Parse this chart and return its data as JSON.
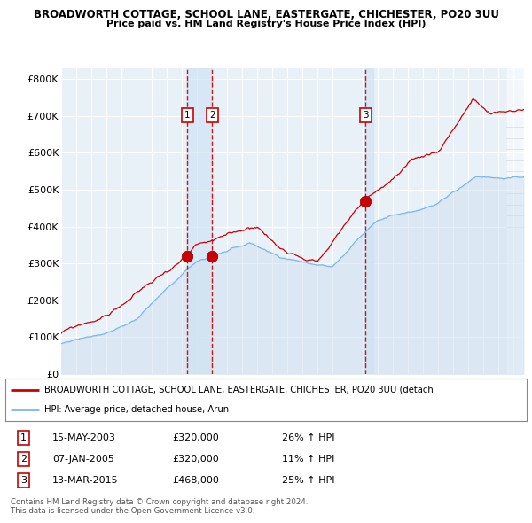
{
  "title1": "BROADWORTH COTTAGE, SCHOOL LANE, EASTERGATE, CHICHESTER, PO20 3UU",
  "title2": "Price paid vs. HM Land Registry's House Price Index (HPI)",
  "ylabel_ticks": [
    "£0",
    "£100K",
    "£200K",
    "£300K",
    "£400K",
    "£500K",
    "£600K",
    "£700K",
    "£800K"
  ],
  "ytick_vals": [
    0,
    100000,
    200000,
    300000,
    400000,
    500000,
    600000,
    700000,
    800000
  ],
  "ylim": [
    0,
    830000
  ],
  "xlim_start": 1995.3,
  "xlim_end": 2025.7,
  "purchases": [
    {
      "num": 1,
      "date": "15-MAY-2003",
      "price": 320000,
      "year": 2003.37,
      "pct": "26%",
      "dir": "↑"
    },
    {
      "num": 2,
      "date": "07-JAN-2005",
      "price": 320000,
      "year": 2005.02,
      "pct": "11%",
      "dir": "↑"
    },
    {
      "num": 3,
      "date": "13-MAR-2015",
      "price": 468000,
      "year": 2015.19,
      "pct": "25%",
      "dir": "↑"
    }
  ],
  "legend_property_label": "BROADWORTH COTTAGE, SCHOOL LANE, EASTERGATE, CHICHESTER, PO20 3UU (detach",
  "legend_hpi_label": "HPI: Average price, detached house, Arun",
  "footer1": "Contains HM Land Registry data © Crown copyright and database right 2024.",
  "footer2": "This data is licensed under the Open Government Licence v3.0.",
  "property_line_color": "#cc0000",
  "hpi_line_color": "#7ab8e8",
  "hpi_fill_color": "#cfe0f0",
  "dashed_line_color": "#cc0000",
  "marker_color": "#cc0000",
  "background_color": "#ffffff",
  "plot_bg_color": "#e8f0f8",
  "grid_color": "#ffffff",
  "vshade_color": "#d0e4f4",
  "diagonal_shade": true
}
